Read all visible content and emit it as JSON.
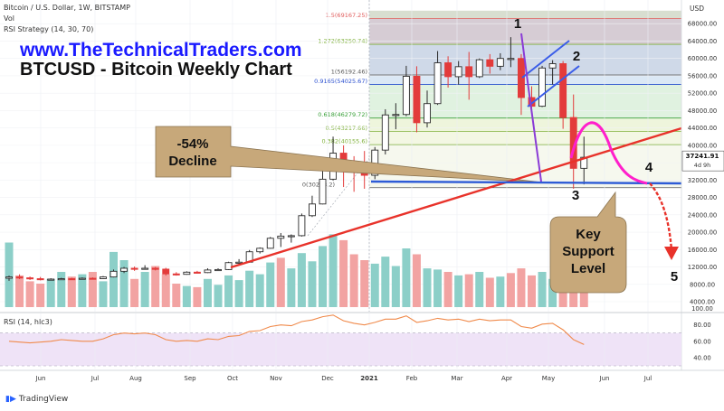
{
  "header": {
    "symbol_line": "Bitcoin / U.S. Dollar, 1W, BITSTAMP",
    "vol_label": "Vol",
    "rsi_strategy_label": "RSI Strategy (14, 30, 70)",
    "rsi_pane_label": "RSI (14, hlc3)"
  },
  "site_url": "www.TheTechnicalTraders.com",
  "chart_title": "BTCUSD - Bitcoin Weekly Chart",
  "branding": "TradingView",
  "colors": {
    "up": "#26a69a",
    "down": "#ef5350",
    "trendline": "#e8322a",
    "support": "#2d5bd6",
    "projection": "#ff1fcb",
    "callout": "#c7a87a",
    "rsi_line": "#f08a4b",
    "rsi_band": "#efe3f7"
  },
  "chart_data": {
    "type": "candlestick",
    "title": "BTCUSD - Bitcoin Weekly Chart",
    "price_axis": {
      "ticks": [
        4000,
        8000,
        12000,
        16000,
        20000,
        24000,
        28000,
        32000,
        36000,
        40000,
        44000,
        48000,
        52000,
        56000,
        60000,
        64000,
        68000
      ],
      "tick_labels": [
        "4000.00",
        "8000.00",
        "12000.00",
        "16000.00",
        "20000.00",
        "24000.00",
        "28000.00",
        "32000.00",
        "36000.00",
        "40000.00",
        "44000.00",
        "48000.00",
        "52000.00",
        "56000.00",
        "60000.00",
        "64000.00",
        "68000.00"
      ],
      "currency": "USD",
      "last_price": "37241.91",
      "countdown": "4d 9h"
    },
    "time_axis": {
      "labels": [
        "Jun",
        "Jul",
        "Aug",
        "Sep",
        "Oct",
        "Nov",
        "Dec",
        "2021",
        "Feb",
        "Mar",
        "Apr",
        "May",
        "Jun",
        "Jul"
      ],
      "positions": [
        45,
        105,
        150,
        210,
        257,
        305,
        362,
        408,
        455,
        505,
        560,
        606,
        668,
        716
      ]
    },
    "candles": [
      {
        "o": 9400,
        "c": 9700,
        "h": 10000,
        "l": 8800
      },
      {
        "o": 9700,
        "c": 9500,
        "h": 10300,
        "l": 9200
      },
      {
        "o": 9500,
        "c": 9300,
        "h": 9800,
        "l": 9000
      },
      {
        "o": 9300,
        "c": 9100,
        "h": 9700,
        "l": 8900
      },
      {
        "o": 9100,
        "c": 9200,
        "h": 9400,
        "l": 8900
      },
      {
        "o": 9200,
        "c": 9300,
        "h": 9500,
        "l": 9000
      },
      {
        "o": 9300,
        "c": 9200,
        "h": 9500,
        "l": 9000
      },
      {
        "o": 9200,
        "c": 9400,
        "h": 9600,
        "l": 9100
      },
      {
        "o": 9400,
        "c": 9300,
        "h": 9600,
        "l": 9100
      },
      {
        "o": 9300,
        "c": 9700,
        "h": 9900,
        "l": 9200
      },
      {
        "o": 9700,
        "c": 11000,
        "h": 11400,
        "l": 9600
      },
      {
        "o": 11000,
        "c": 11700,
        "h": 12000,
        "l": 10600
      },
      {
        "o": 11700,
        "c": 11600,
        "h": 12100,
        "l": 11100
      },
      {
        "o": 11600,
        "c": 11700,
        "h": 12400,
        "l": 11400
      },
      {
        "o": 11700,
        "c": 11500,
        "h": 12000,
        "l": 11200
      },
      {
        "o": 11500,
        "c": 10400,
        "h": 11800,
        "l": 10000
      },
      {
        "o": 10400,
        "c": 10300,
        "h": 10800,
        "l": 10000
      },
      {
        "o": 10300,
        "c": 10800,
        "h": 11000,
        "l": 10200
      },
      {
        "o": 10800,
        "c": 10700,
        "h": 11100,
        "l": 10500
      },
      {
        "o": 10700,
        "c": 11300,
        "h": 11700,
        "l": 10600
      },
      {
        "o": 11300,
        "c": 11400,
        "h": 11700,
        "l": 11200
      },
      {
        "o": 11400,
        "c": 13000,
        "h": 13200,
        "l": 11300
      },
      {
        "o": 13000,
        "c": 13100,
        "h": 13800,
        "l": 12800
      },
      {
        "o": 13100,
        "c": 15500,
        "h": 15900,
        "l": 13000
      },
      {
        "o": 15500,
        "c": 16300,
        "h": 16500,
        "l": 15100
      },
      {
        "o": 16300,
        "c": 18600,
        "h": 18900,
        "l": 16200
      },
      {
        "o": 18600,
        "c": 19100,
        "h": 19800,
        "l": 16600
      },
      {
        "o": 19100,
        "c": 19200,
        "h": 19500,
        "l": 17600
      },
      {
        "o": 19200,
        "c": 23800,
        "h": 24300,
        "l": 19000
      },
      {
        "o": 23800,
        "c": 26500,
        "h": 28400,
        "l": 23500
      },
      {
        "o": 26500,
        "c": 32200,
        "h": 34800,
        "l": 26400
      },
      {
        "o": 32200,
        "c": 38200,
        "h": 42000,
        "l": 31900
      },
      {
        "o": 38200,
        "c": 36000,
        "h": 40000,
        "l": 30400
      },
      {
        "o": 36000,
        "c": 34300,
        "h": 37500,
        "l": 29300
      },
      {
        "o": 34300,
        "c": 33100,
        "h": 38700,
        "l": 30000
      },
      {
        "o": 33100,
        "c": 38900,
        "h": 39600,
        "l": 32200
      },
      {
        "o": 38900,
        "c": 47000,
        "h": 48300,
        "l": 37900
      },
      {
        "o": 47000,
        "c": 47100,
        "h": 49700,
        "l": 43700
      },
      {
        "o": 47100,
        "c": 55900,
        "h": 58300,
        "l": 46700
      },
      {
        "o": 55900,
        "c": 45200,
        "h": 58200,
        "l": 43000
      },
      {
        "o": 45200,
        "c": 49600,
        "h": 52600,
        "l": 44100
      },
      {
        "o": 49600,
        "c": 59000,
        "h": 61700,
        "l": 49300
      },
      {
        "o": 59000,
        "c": 55800,
        "h": 60500,
        "l": 53300
      },
      {
        "o": 55800,
        "c": 58100,
        "h": 59400,
        "l": 54000
      },
      {
        "o": 58100,
        "c": 55800,
        "h": 61500,
        "l": 50500
      },
      {
        "o": 55800,
        "c": 59700,
        "h": 60000,
        "l": 55500
      },
      {
        "o": 59700,
        "c": 58200,
        "h": 61000,
        "l": 56500
      },
      {
        "o": 58200,
        "c": 60000,
        "h": 61200,
        "l": 57300
      },
      {
        "o": 60000,
        "c": 60000,
        "h": 64900,
        "l": 58000
      },
      {
        "o": 60000,
        "c": 51000,
        "h": 61000,
        "l": 47000
      },
      {
        "o": 51000,
        "c": 49000,
        "h": 53600,
        "l": 47500
      },
      {
        "o": 49000,
        "c": 57800,
        "h": 58300,
        "l": 48800
      },
      {
        "o": 57800,
        "c": 58800,
        "h": 59600,
        "l": 54000
      },
      {
        "o": 58800,
        "c": 46400,
        "h": 59400,
        "l": 43800
      },
      {
        "o": 46400,
        "c": 34700,
        "h": 51700,
        "l": 30000
      },
      {
        "o": 34700,
        "c": 37242,
        "h": 42000,
        "l": 31000
      }
    ],
    "volumes": [
      {
        "v": 0.55,
        "up": true
      },
      {
        "v": 0.27,
        "up": false
      },
      {
        "v": 0.22,
        "up": false
      },
      {
        "v": 0.2,
        "up": false
      },
      {
        "v": 0.24,
        "up": true
      },
      {
        "v": 0.3,
        "up": true
      },
      {
        "v": 0.26,
        "up": false
      },
      {
        "v": 0.28,
        "up": true
      },
      {
        "v": 0.3,
        "up": false
      },
      {
        "v": 0.22,
        "up": true
      },
      {
        "v": 0.47,
        "up": true
      },
      {
        "v": 0.4,
        "up": true
      },
      {
        "v": 0.24,
        "up": false
      },
      {
        "v": 0.3,
        "up": true
      },
      {
        "v": 0.35,
        "up": false
      },
      {
        "v": 0.28,
        "up": false
      },
      {
        "v": 0.2,
        "up": false
      },
      {
        "v": 0.18,
        "up": true
      },
      {
        "v": 0.17,
        "up": false
      },
      {
        "v": 0.24,
        "up": true
      },
      {
        "v": 0.19,
        "up": true
      },
      {
        "v": 0.27,
        "up": true
      },
      {
        "v": 0.23,
        "up": true
      },
      {
        "v": 0.31,
        "up": true
      },
      {
        "v": 0.28,
        "up": true
      },
      {
        "v": 0.38,
        "up": true
      },
      {
        "v": 0.42,
        "up": false
      },
      {
        "v": 0.33,
        "up": true
      },
      {
        "v": 0.46,
        "up": true
      },
      {
        "v": 0.39,
        "up": true
      },
      {
        "v": 0.52,
        "up": true
      },
      {
        "v": 0.62,
        "up": true
      },
      {
        "v": 0.57,
        "up": false
      },
      {
        "v": 0.45,
        "up": false
      },
      {
        "v": 0.4,
        "up": false
      },
      {
        "v": 0.37,
        "up": true
      },
      {
        "v": 0.43,
        "up": true
      },
      {
        "v": 0.35,
        "up": true
      },
      {
        "v": 0.5,
        "up": true
      },
      {
        "v": 0.45,
        "up": false
      },
      {
        "v": 0.33,
        "up": true
      },
      {
        "v": 0.32,
        "up": true
      },
      {
        "v": 0.3,
        "up": false
      },
      {
        "v": 0.27,
        "up": true
      },
      {
        "v": 0.28,
        "up": false
      },
      {
        "v": 0.3,
        "up": true
      },
      {
        "v": 0.25,
        "up": false
      },
      {
        "v": 0.26,
        "up": true
      },
      {
        "v": 0.29,
        "up": false
      },
      {
        "v": 0.33,
        "up": false
      },
      {
        "v": 0.27,
        "up": false
      },
      {
        "v": 0.3,
        "up": true
      },
      {
        "v": 0.24,
        "up": true
      },
      {
        "v": 0.34,
        "up": false
      },
      {
        "v": 0.58,
        "up": false
      },
      {
        "v": 0.36,
        "up": false
      }
    ],
    "fib_levels": [
      {
        "label": "1.5(69167.25)",
        "price": 69167.25,
        "color": "#e05a5a",
        "fill": "#d8ded0"
      },
      {
        "label": "1.272(63250.74)",
        "price": 63250.74,
        "color": "#7fb03a",
        "fill": "#d6ccd4"
      },
      {
        "label": "1(56192.46)",
        "price": 56192.46,
        "color": "#555555",
        "fill": "#cfd9e8"
      },
      {
        "label": "0.9165(54025.67)",
        "price": 54025.67,
        "color": "#2a4fcf",
        "fill": "#dbe8f5"
      },
      {
        "label": "0.618(46279.72)",
        "price": 46279.72,
        "color": "#3aa03a",
        "fill": "#e0f2e0"
      },
      {
        "label": "0.5(43217.66)",
        "price": 43217.66,
        "color": "#7fb03a",
        "fill": "#eef5dc"
      },
      {
        "label": "0.382(40155.6)",
        "price": 40155.6,
        "color": "#7fb03a",
        "fill": "#f3f7e3"
      },
      {
        "label": "0(30248.2)",
        "price": 30248.2,
        "color": "#555555",
        "fill": "none"
      }
    ],
    "fib_top_price": 71000,
    "rsi": {
      "ticks": [
        40,
        60,
        80,
        100
      ],
      "tick_labels": [
        "40.00",
        "60.00",
        "80.00",
        "100.00"
      ],
      "band": [
        30,
        70
      ],
      "values": [
        60,
        59,
        58,
        59,
        60,
        62,
        61,
        60,
        60,
        63,
        68,
        70,
        69,
        70,
        68,
        62,
        60,
        61,
        60,
        63,
        62,
        66,
        67,
        72,
        73,
        78,
        80,
        79,
        84,
        86,
        90,
        92,
        85,
        82,
        80,
        83,
        87,
        87,
        91,
        83,
        85,
        88,
        86,
        87,
        84,
        87,
        85,
        86,
        86,
        78,
        76,
        81,
        82,
        74,
        62,
        56
      ]
    },
    "annotations": {
      "decline": "-54%\nDecline",
      "key_support": "Key\nSupport\nLevel",
      "wave_labels": [
        "1",
        "2",
        "3",
        "4",
        "5"
      ]
    }
  }
}
